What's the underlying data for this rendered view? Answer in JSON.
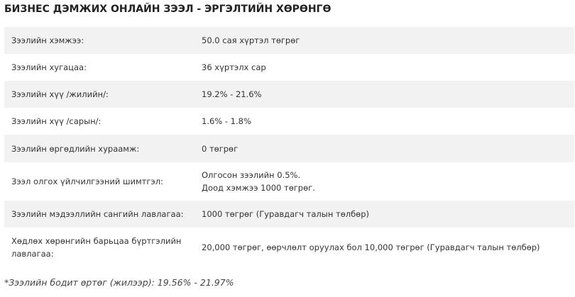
{
  "title": "БИЗНЕС ДЭМЖИХ ОНЛАЙН ЗЭЭЛ - ЭРГЭЛТИЙН ХӨРӨНГӨ",
  "rows": [
    {
      "label": "Зээлийн хэмжээ:",
      "value": "50.0 сая хүртэл төгрөг"
    },
    {
      "label": "Зээлийн хугацаа:",
      "value": "36 хүртэлх сар"
    },
    {
      "label": "Зээлийн хүү /жилийн/:",
      "value": "19.2% - 21.6%"
    },
    {
      "label": "Зээлийн хүү /сарын/:",
      "value": "1.6% - 1.8%"
    },
    {
      "label": "Зээлийн өргөдлийн хураамж:",
      "value": "0 төгрөг"
    },
    {
      "label": "Зээл олгох үйлчилгээний шимтгэл:",
      "value_line1": "Олгосон зээлийн 0.5%.",
      "value_line2": "Доод хэмжээ 1000 төгрөг."
    },
    {
      "label": "Зээлийн мэдээллийн сангийн лавлагаа:",
      "value": "1000 төгрөг (Гуравдагч талын төлбөр)"
    },
    {
      "label_line1": "Хөдлөх хөрөнгийн барьцаа бүртгэлийн",
      "label_line2": "лавлагаа:",
      "value": "20,000 төгрөг, өөрчлөлт оруулах бол 10,000 төгрөг (Гуравдагч талын төлбөр)"
    }
  ],
  "footnote": "*Зээлийн бодит өртөг (жилээр): 19.56% - 21.97%"
}
